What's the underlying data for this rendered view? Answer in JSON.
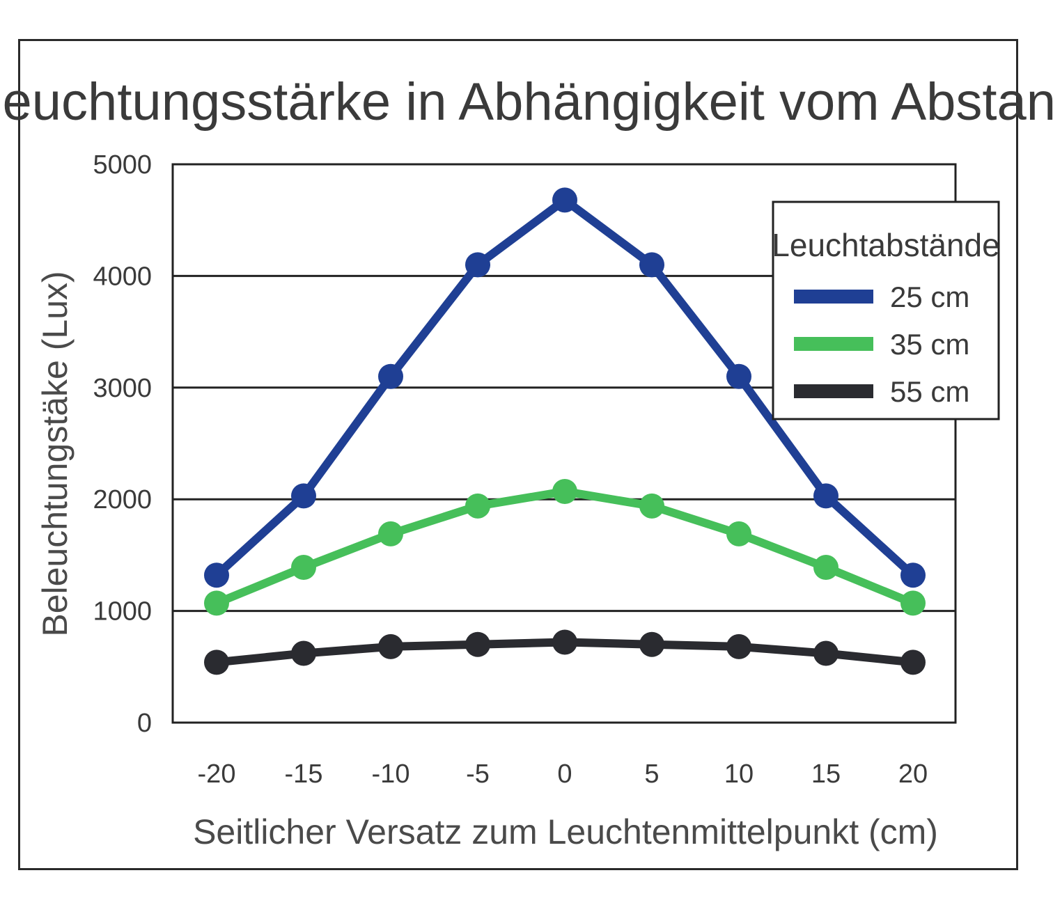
{
  "chart_data": {
    "type": "line",
    "title": "Beleuchtungsstärke in Abhängigkeit vom Abstand",
    "xlabel": "Seitlicher Versatz zum Leuchtenmittelpunkt (cm)",
    "ylabel": "Beleuchtungstäke (Lux)",
    "x": [
      -20,
      -15,
      -10,
      -5,
      0,
      5,
      10,
      15,
      20
    ],
    "x_tick_labels": [
      "-20",
      "-15",
      "-10",
      "-5",
      "0",
      "5",
      "10",
      "15",
      "20"
    ],
    "ylim": [
      0,
      5000
    ],
    "y_ticks": [
      0,
      1000,
      2000,
      3000,
      4000,
      5000
    ],
    "y_tick_labels": [
      "0",
      "1000",
      "2000",
      "3000",
      "4000",
      "5000"
    ],
    "grid": "horizontal",
    "legend": {
      "title": "Leuchtabstände",
      "placement": "top-right"
    },
    "series": [
      {
        "name": "25 cm",
        "color": "#1f3f94",
        "values": [
          1320,
          2030,
          3100,
          4100,
          4680,
          4100,
          3100,
          2030,
          1320
        ]
      },
      {
        "name": "35 cm",
        "color": "#46bf5a",
        "values": [
          1070,
          1390,
          1690,
          1940,
          2070,
          1940,
          1690,
          1390,
          1070
        ]
      },
      {
        "name": "55 cm",
        "color": "#2a2b30",
        "values": [
          540,
          620,
          680,
          700,
          720,
          700,
          680,
          620,
          540
        ]
      }
    ]
  }
}
